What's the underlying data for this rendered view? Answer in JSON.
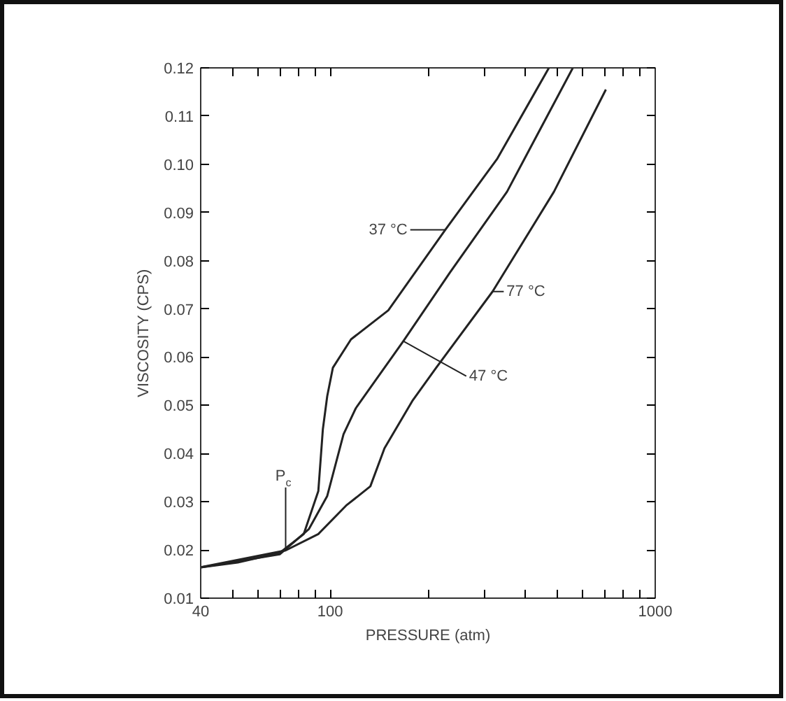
{
  "chart_data": {
    "type": "line",
    "xlabel": "PRESSURE (atm)",
    "ylabel": "VISCOSITY (CPS)",
    "log": "x",
    "grid": false,
    "marker": "none",
    "line_style": "solid",
    "xlim": [
      40,
      1000
    ],
    "ylim": [
      0.01,
      0.12
    ],
    "xticks": [
      40,
      {
        "value": 50,
        "label": null
      },
      {
        "value": 60,
        "label": null
      },
      {
        "value": 70,
        "label": null
      },
      {
        "value": 80,
        "label": null
      },
      {
        "value": 90,
        "label": null
      },
      100,
      {
        "value": 200,
        "label": null
      },
      {
        "value": 300,
        "label": null
      },
      {
        "value": 400,
        "label": null
      },
      {
        "value": 500,
        "label": null
      },
      {
        "value": 600,
        "label": null
      },
      {
        "value": 700,
        "label": null
      },
      {
        "value": 800,
        "label": null
      },
      {
        "value": 900,
        "label": null
      },
      1000
    ],
    "yticks": [
      0.01,
      0.02,
      0.03,
      0.04,
      0.05,
      0.06,
      0.07,
      0.08,
      0.09,
      {
        "value": 0.1,
        "label": "0.10"
      },
      0.11,
      0.12
    ],
    "series": [
      {
        "color": "#222222",
        "x": [
          40,
          52,
          70,
          83,
          92,
          95,
          98,
          102,
          116,
          151,
          226,
          327,
          471
        ],
        "values": [
          0.0164,
          0.0174,
          0.0194,
          0.0233,
          0.0322,
          0.045,
          0.0519,
          0.0578,
          0.0637,
          0.0697,
          0.0864,
          0.1012,
          0.12
        ]
      },
      {
        "color": "#222222",
        "x": [
          40,
          70,
          86,
          98,
          110,
          120,
          137,
          168,
          234,
          350,
          558
        ],
        "values": [
          0.0164,
          0.0191,
          0.0243,
          0.0312,
          0.044,
          0.0494,
          0.0549,
          0.0633,
          0.0776,
          0.0943,
          0.12
        ]
      },
      {
        "color": "#222222",
        "x": [
          40,
          73,
          92,
          112,
          133,
          147,
          179,
          212,
          316,
          488,
          705
        ],
        "values": [
          0.0164,
          0.0199,
          0.0233,
          0.0292,
          0.0332,
          0.0411,
          0.0509,
          0.0578,
          0.0736,
          0.0943,
          0.1155
        ]
      }
    ],
    "annotations": [
      {
        "text": "37 °C",
        "x": 226,
        "y": 0.0864
      },
      {
        "text": "47 °C",
        "x": 168,
        "y": 0.0633
      },
      {
        "text": "77 °C",
        "x": 316,
        "y": 0.0736
      },
      {
        "text": "P$_{c}$",
        "x": 73,
        "y": 0.0199
      }
    ]
  }
}
